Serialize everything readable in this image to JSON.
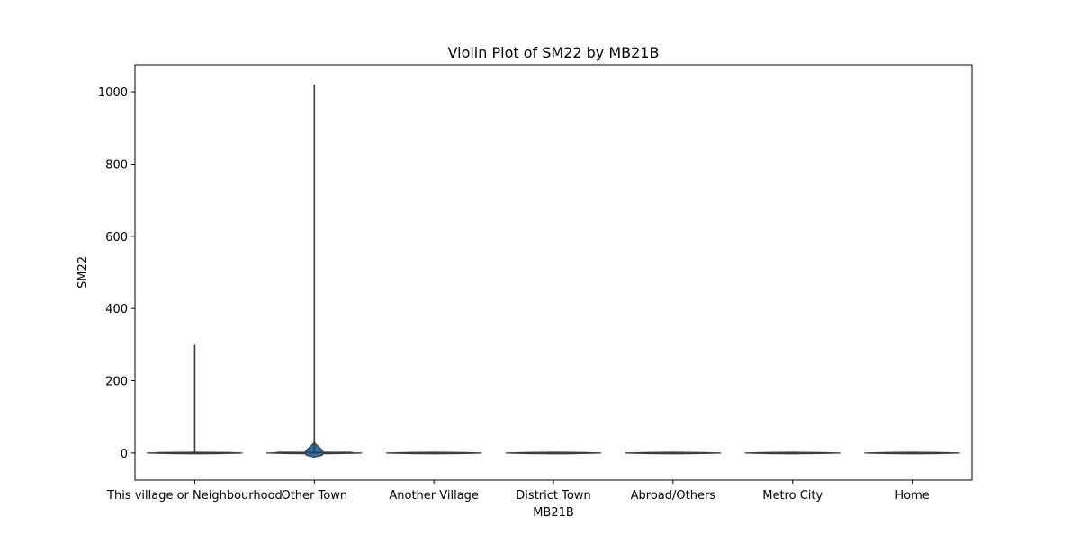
{
  "chart_data": {
    "type": "violin",
    "title": "Violin Plot of SM22 by MB21B",
    "xlabel": "MB21B",
    "ylabel": "SM22",
    "ylim": [
      -75,
      1075
    ],
    "yticks": [
      0,
      200,
      400,
      600,
      800,
      1000
    ],
    "ytick_labels": [
      "0",
      "200",
      "400",
      "600",
      "800",
      "1000"
    ],
    "categories": [
      "This village or Neighbourhood",
      "Other Town",
      "Another Village",
      "District Town",
      "Abroad/Others",
      "Metro City",
      "Home"
    ],
    "violins": [
      {
        "category": "This village or Neighbourhood",
        "min": 0,
        "max": 300,
        "median": 0,
        "q1": 0,
        "q3": 1
      },
      {
        "category": "Other Town",
        "min": -12,
        "max": 1020,
        "median": 0,
        "q1": 0,
        "q3": 2
      },
      {
        "category": "Another Village",
        "min": 0,
        "max": 0,
        "median": 0,
        "q1": 0,
        "q3": 0
      },
      {
        "category": "District Town",
        "min": 0,
        "max": 0,
        "median": 0,
        "q1": 0,
        "q3": 0
      },
      {
        "category": "Abroad/Others",
        "min": 0,
        "max": 0,
        "median": 0,
        "q1": 0,
        "q3": 0
      },
      {
        "category": "Metro City",
        "min": 0,
        "max": 0,
        "median": 0,
        "q1": 0,
        "q3": 0
      },
      {
        "category": "Home",
        "min": 0,
        "max": 0,
        "median": 0,
        "q1": 0,
        "q3": 0
      }
    ],
    "fill_color": "#1f77b4",
    "line_color": "#3d3d3d",
    "grid": false,
    "legend": "none"
  }
}
